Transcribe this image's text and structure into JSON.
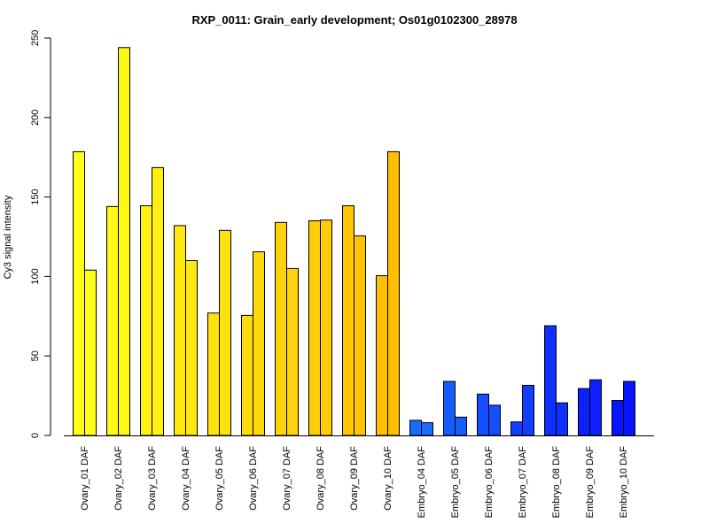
{
  "chart_data": {
    "type": "bar",
    "title": "RXP_0011: Grain_early development; Os01g0102300_28978",
    "xlabel": "",
    "ylabel": "Cy3 signal intensity",
    "ylim": [
      0,
      250
    ],
    "yticks": [
      0,
      50,
      100,
      150,
      200,
      250
    ],
    "grid": false,
    "bar_outline": "#000000",
    "categories": [
      "Ovary_01 DAF",
      "Ovary_02 DAF",
      "Ovary_03 DAF",
      "Ovary_04 DAF",
      "Ovary_05 DAF",
      "Ovary_06 DAF",
      "Ovary_07 DAF",
      "Ovary_08 DAF",
      "Ovary_09 DAF",
      "Ovary_10 DAF",
      "Embryo_04 DAF",
      "Embryo_05 DAF",
      "Embryo_06 DAF",
      "Embryo_07 DAF",
      "Embryo_08 DAF",
      "Embryo_09 DAF",
      "Embryo_10 DAF"
    ],
    "colors": [
      "#FFFF19",
      "#FFF715",
      "#FFF012",
      "#FFE810",
      "#FFE10D",
      "#FFDA0B",
      "#FFD309",
      "#FFCC07",
      "#FFC504",
      "#FFBE02",
      "#1A6BFF",
      "#175CFF",
      "#144EFF",
      "#113FFF",
      "#0E31FF",
      "#0B22FF",
      "#0814FF"
    ],
    "series": [
      {
        "values": [
          178.5,
          144,
          144.5,
          132,
          77,
          75.5,
          134,
          135,
          144.5,
          100.5,
          9.5,
          34,
          26,
          8.5,
          69,
          29.5,
          22
        ]
      },
      {
        "values": [
          104,
          244,
          168.5,
          110,
          129,
          115.5,
          105,
          135.5,
          125.5,
          178.5,
          8,
          11.5,
          19,
          31.5,
          20.5,
          35,
          34
        ]
      }
    ]
  }
}
